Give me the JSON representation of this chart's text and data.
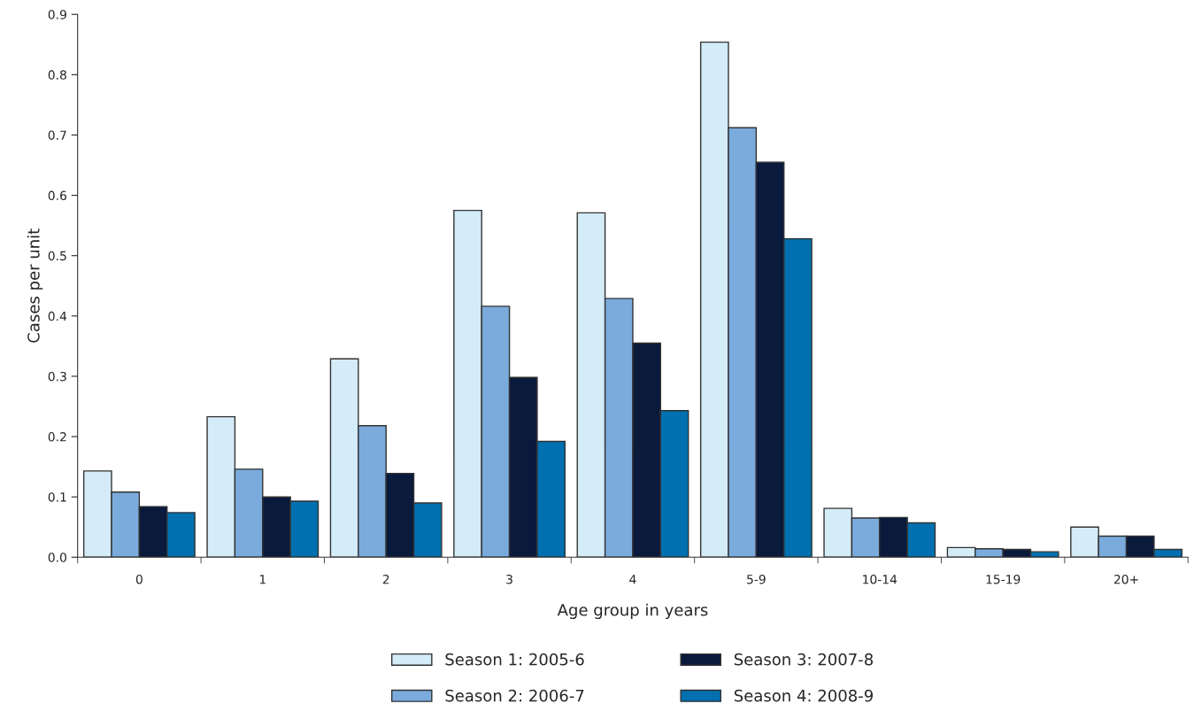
{
  "chart_data": {
    "type": "bar",
    "xlabel": "Age group in years",
    "ylabel": "Cases per unit",
    "categories": [
      "0",
      "1",
      "2",
      "3",
      "4",
      "5-9",
      "10-14",
      "15-19",
      "20+"
    ],
    "series": [
      {
        "name": "Season 1: 2005-6",
        "color": "#d4ebf8",
        "values": [
          0.143,
          0.233,
          0.329,
          0.575,
          0.571,
          0.854,
          0.081,
          0.016,
          0.05
        ]
      },
      {
        "name": "Season 2: 2006-7",
        "color": "#7aabdc",
        "values": [
          0.108,
          0.146,
          0.218,
          0.416,
          0.429,
          0.712,
          0.065,
          0.014,
          0.035
        ]
      },
      {
        "name": "Season 3: 2007-8",
        "color": "#0a1a3c",
        "values": [
          0.084,
          0.1,
          0.139,
          0.298,
          0.355,
          0.655,
          0.066,
          0.013,
          0.035
        ]
      },
      {
        "name": "Season 4: 2008-9",
        "color": "#0070b0",
        "values": [
          0.074,
          0.093,
          0.09,
          0.192,
          0.243,
          0.528,
          0.057,
          0.009,
          0.013
        ]
      }
    ],
    "ylim": [
      0,
      0.9
    ],
    "yticks": [
      {
        "value": 0,
        "label": "0.0"
      },
      0.1,
      0.2,
      0.3,
      0.4,
      0.5,
      0.6,
      0.7,
      0.8,
      0.9
    ],
    "grid": false,
    "legend": "bottom"
  }
}
